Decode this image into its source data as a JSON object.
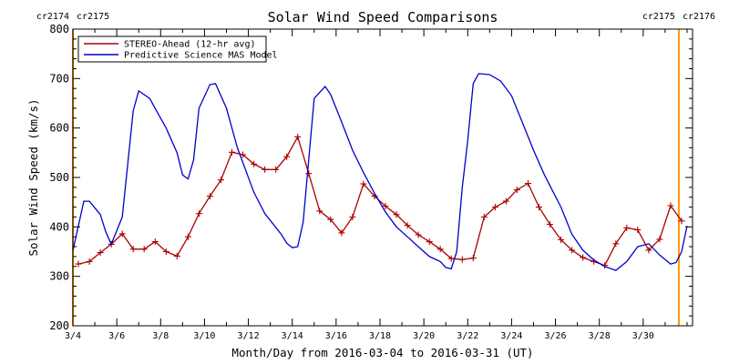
{
  "chart_data": {
    "type": "line",
    "title": "Solar Wind Speed Comparisons",
    "xlabel": "Month/Day from 2016-03-04 to 2016-03-31 (UT)",
    "ylabel": "Solar Wind Speed (km/s)",
    "x_range": [
      "2016-03-04T00:00",
      "2016-04-01T06:00"
    ],
    "ylim": [
      200,
      800
    ],
    "y_ticks": [
      200,
      300,
      400,
      500,
      600,
      700,
      800
    ],
    "x_tick_labels": [
      "3/4",
      "3/6",
      "3/8",
      "3/10",
      "3/12",
      "3/14",
      "3/16",
      "3/18",
      "3/20",
      "3/22",
      "3/24",
      "3/26",
      "3/28",
      "3/30"
    ],
    "x_tick_dates": [
      "2016-03-04",
      "2016-03-06",
      "2016-03-08",
      "2016-03-10",
      "2016-03-12",
      "2016-03-14",
      "2016-03-16",
      "2016-03-18",
      "2016-03-20",
      "2016-03-22",
      "2016-03-24",
      "2016-03-26",
      "2016-03-28",
      "2016-03-30"
    ],
    "grid": false,
    "legend_position": "top-left",
    "carrington_markers": [
      {
        "label_left": "cr2174",
        "label_right": "cr2175",
        "date": "2016-03-04T00:00",
        "color": "#ff9900"
      },
      {
        "label_left": "cr2175",
        "label_right": "cr2176",
        "date": "2016-03-31T15:00",
        "color": "#ff9900"
      }
    ],
    "series": [
      {
        "name": "STEREO-Ahead (12-hr avg)",
        "color": "#aa0000",
        "marker": "plus",
        "points": [
          [
            "2016-03-04T06:00",
            325
          ],
          [
            "2016-03-04T18:00",
            330
          ],
          [
            "2016-03-05T06:00",
            348
          ],
          [
            "2016-03-05T18:00",
            365
          ],
          [
            "2016-03-06T06:00",
            386
          ],
          [
            "2016-03-06T18:00",
            355
          ],
          [
            "2016-03-07T06:00",
            355
          ],
          [
            "2016-03-07T18:00",
            370
          ],
          [
            "2016-03-08T06:00",
            350
          ],
          [
            "2016-03-08T18:00",
            341
          ],
          [
            "2016-03-09T06:00",
            380
          ],
          [
            "2016-03-09T18:00",
            427
          ],
          [
            "2016-03-10T06:00",
            462
          ],
          [
            "2016-03-10T18:00",
            495
          ],
          [
            "2016-03-11T06:00",
            551
          ],
          [
            "2016-03-11T18:00",
            546
          ],
          [
            "2016-03-12T06:00",
            527
          ],
          [
            "2016-03-12T18:00",
            516
          ],
          [
            "2016-03-13T06:00",
            516
          ],
          [
            "2016-03-13T18:00",
            542
          ],
          [
            "2016-03-14T06:00",
            582
          ],
          [
            "2016-03-14T18:00",
            508
          ],
          [
            "2016-03-15T06:00",
            432
          ],
          [
            "2016-03-15T18:00",
            415
          ],
          [
            "2016-03-16T06:00",
            388
          ],
          [
            "2016-03-16T18:00",
            420
          ],
          [
            "2016-03-17T06:00",
            487
          ],
          [
            "2016-03-17T18:00",
            462
          ],
          [
            "2016-03-18T06:00",
            442
          ],
          [
            "2016-03-18T18:00",
            425
          ],
          [
            "2016-03-19T06:00",
            403
          ],
          [
            "2016-03-19T18:00",
            384
          ],
          [
            "2016-03-20T06:00",
            370
          ],
          [
            "2016-03-20T18:00",
            355
          ],
          [
            "2016-03-21T06:00",
            336
          ],
          [
            "2016-03-21T18:00",
            334
          ],
          [
            "2016-03-22T06:00",
            337
          ],
          [
            "2016-03-22T18:00",
            420
          ],
          [
            "2016-03-23T06:00",
            440
          ],
          [
            "2016-03-23T18:00",
            452
          ],
          [
            "2016-03-24T06:00",
            475
          ],
          [
            "2016-03-24T18:00",
            488
          ],
          [
            "2016-03-25T06:00",
            440
          ],
          [
            "2016-03-25T18:00",
            405
          ],
          [
            "2016-03-26T06:00",
            374
          ],
          [
            "2016-03-26T18:00",
            353
          ],
          [
            "2016-03-27T06:00",
            338
          ],
          [
            "2016-03-27T18:00",
            330
          ],
          [
            "2016-03-28T06:00",
            322
          ],
          [
            "2016-03-28T18:00",
            366
          ],
          [
            "2016-03-29T06:00",
            398
          ],
          [
            "2016-03-29T18:00",
            394
          ],
          [
            "2016-03-30T06:00",
            353
          ],
          [
            "2016-03-30T18:00",
            375
          ],
          [
            "2016-03-31T06:00",
            443
          ],
          [
            "2016-03-31T18:00",
            412
          ]
        ]
      },
      {
        "name": "Predictive Science MAS Model",
        "color": "#0000cc",
        "marker": "none",
        "points": [
          [
            "2016-03-04T00:00",
            352
          ],
          [
            "2016-03-04T12:00",
            452
          ],
          [
            "2016-03-04T18:00",
            452
          ],
          [
            "2016-03-05T06:00",
            425
          ],
          [
            "2016-03-05T12:00",
            390
          ],
          [
            "2016-03-05T18:00",
            365
          ],
          [
            "2016-03-06T06:00",
            420
          ],
          [
            "2016-03-06T18:00",
            635
          ],
          [
            "2016-03-07T00:00",
            675
          ],
          [
            "2016-03-07T12:00",
            660
          ],
          [
            "2016-03-08T06:00",
            600
          ],
          [
            "2016-03-08T18:00",
            550
          ],
          [
            "2016-03-09T00:00",
            505
          ],
          [
            "2016-03-09T06:00",
            497
          ],
          [
            "2016-03-09T12:00",
            535
          ],
          [
            "2016-03-09T18:00",
            640
          ],
          [
            "2016-03-10T06:00",
            688
          ],
          [
            "2016-03-10T12:00",
            690
          ],
          [
            "2016-03-11T00:00",
            640
          ],
          [
            "2016-03-11T12:00",
            560
          ],
          [
            "2016-03-12T06:00",
            470
          ],
          [
            "2016-03-12T18:00",
            427
          ],
          [
            "2016-03-13T12:00",
            385
          ],
          [
            "2016-03-13T18:00",
            367
          ],
          [
            "2016-03-14T00:00",
            358
          ],
          [
            "2016-03-14T06:00",
            360
          ],
          [
            "2016-03-14T12:00",
            410
          ],
          [
            "2016-03-15T00:00",
            660
          ],
          [
            "2016-03-15T12:00",
            684
          ],
          [
            "2016-03-15T18:00",
            668
          ],
          [
            "2016-03-16T06:00",
            612
          ],
          [
            "2016-03-16T18:00",
            555
          ],
          [
            "2016-03-17T06:00",
            510
          ],
          [
            "2016-03-17T18:00",
            468
          ],
          [
            "2016-03-18T06:00",
            430
          ],
          [
            "2016-03-18T18:00",
            400
          ],
          [
            "2016-03-19T06:00",
            380
          ],
          [
            "2016-03-19T18:00",
            360
          ],
          [
            "2016-03-20T06:00",
            340
          ],
          [
            "2016-03-20T18:00",
            330
          ],
          [
            "2016-03-21T00:00",
            318
          ],
          [
            "2016-03-21T06:00",
            315
          ],
          [
            "2016-03-21T12:00",
            350
          ],
          [
            "2016-03-21T18:00",
            480
          ],
          [
            "2016-03-22T00:00",
            575
          ],
          [
            "2016-03-22T06:00",
            690
          ],
          [
            "2016-03-22T12:00",
            710
          ],
          [
            "2016-03-23T00:00",
            708
          ],
          [
            "2016-03-23T12:00",
            695
          ],
          [
            "2016-03-24T00:00",
            665
          ],
          [
            "2016-03-24T12:00",
            610
          ],
          [
            "2016-03-25T00:00",
            555
          ],
          [
            "2016-03-25T12:00",
            505
          ],
          [
            "2016-03-26T06:00",
            440
          ],
          [
            "2016-03-26T18:00",
            385
          ],
          [
            "2016-03-27T06:00",
            353
          ],
          [
            "2016-03-27T18:00",
            333
          ],
          [
            "2016-03-28T06:00",
            320
          ],
          [
            "2016-03-28T18:00",
            312
          ],
          [
            "2016-03-29T06:00",
            330
          ],
          [
            "2016-03-29T18:00",
            360
          ],
          [
            "2016-03-30T06:00",
            366
          ],
          [
            "2016-03-30T18:00",
            343
          ],
          [
            "2016-03-31T06:00",
            325
          ],
          [
            "2016-03-31T12:00",
            328
          ],
          [
            "2016-03-31T18:00",
            350
          ],
          [
            "2016-04-01T00:00",
            402
          ]
        ]
      }
    ]
  }
}
